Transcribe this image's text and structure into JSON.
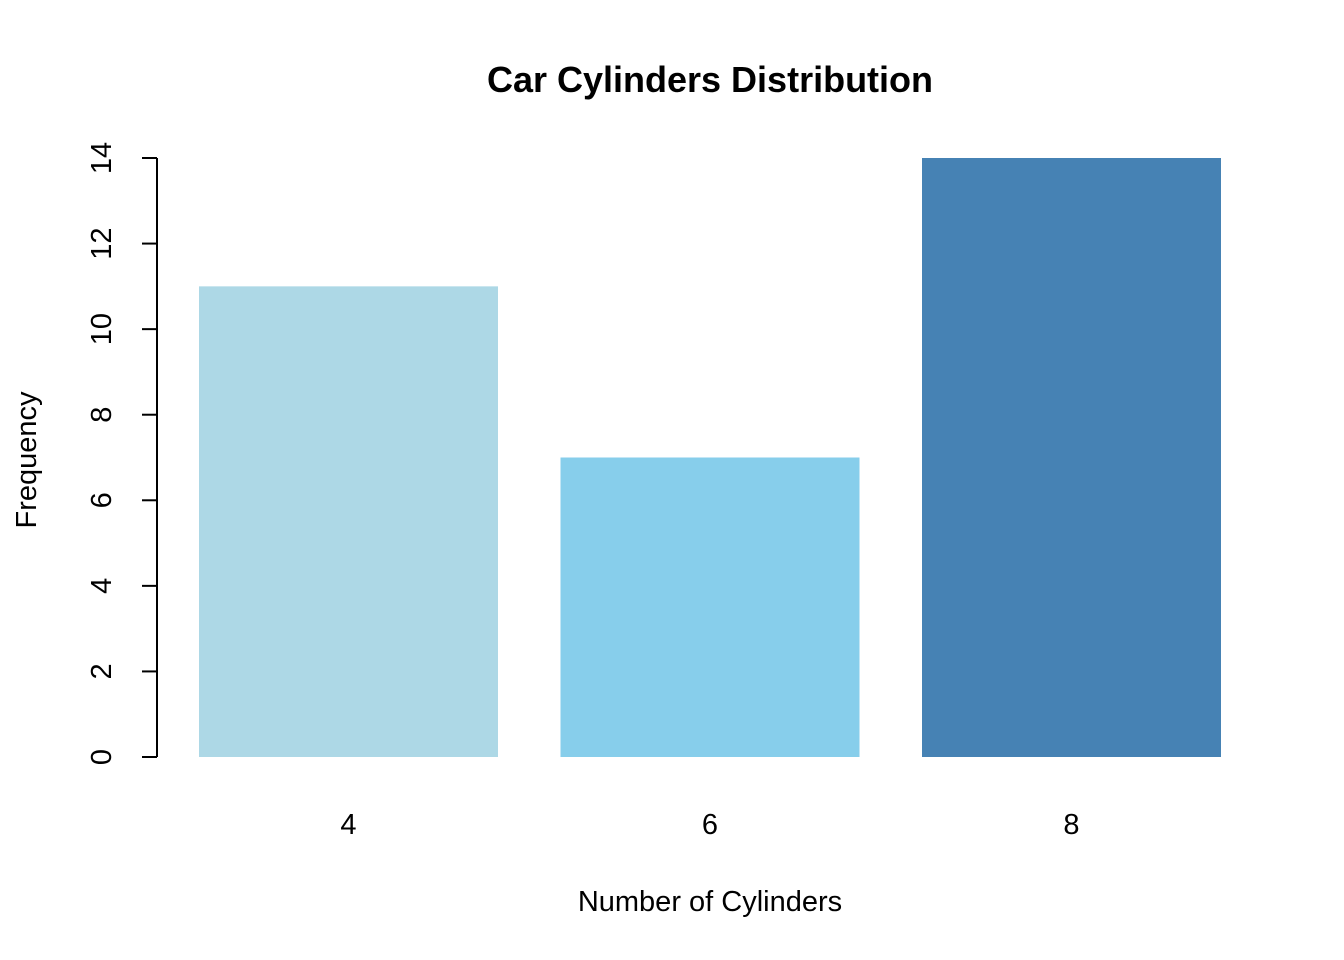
{
  "chart_data": {
    "type": "bar",
    "title": "Car Cylinders Distribution",
    "xlabel": "Number of Cylinders",
    "ylabel": "Frequency",
    "categories": [
      "4",
      "6",
      "8"
    ],
    "values": [
      11,
      7,
      14
    ],
    "colors": [
      "#ADD8E6",
      "#87CEEB",
      "#4682B4"
    ],
    "ylim": [
      0,
      14
    ],
    "yticks": [
      0,
      2,
      4,
      6,
      8,
      10,
      12,
      14
    ],
    "grid": false,
    "legend": "none"
  }
}
